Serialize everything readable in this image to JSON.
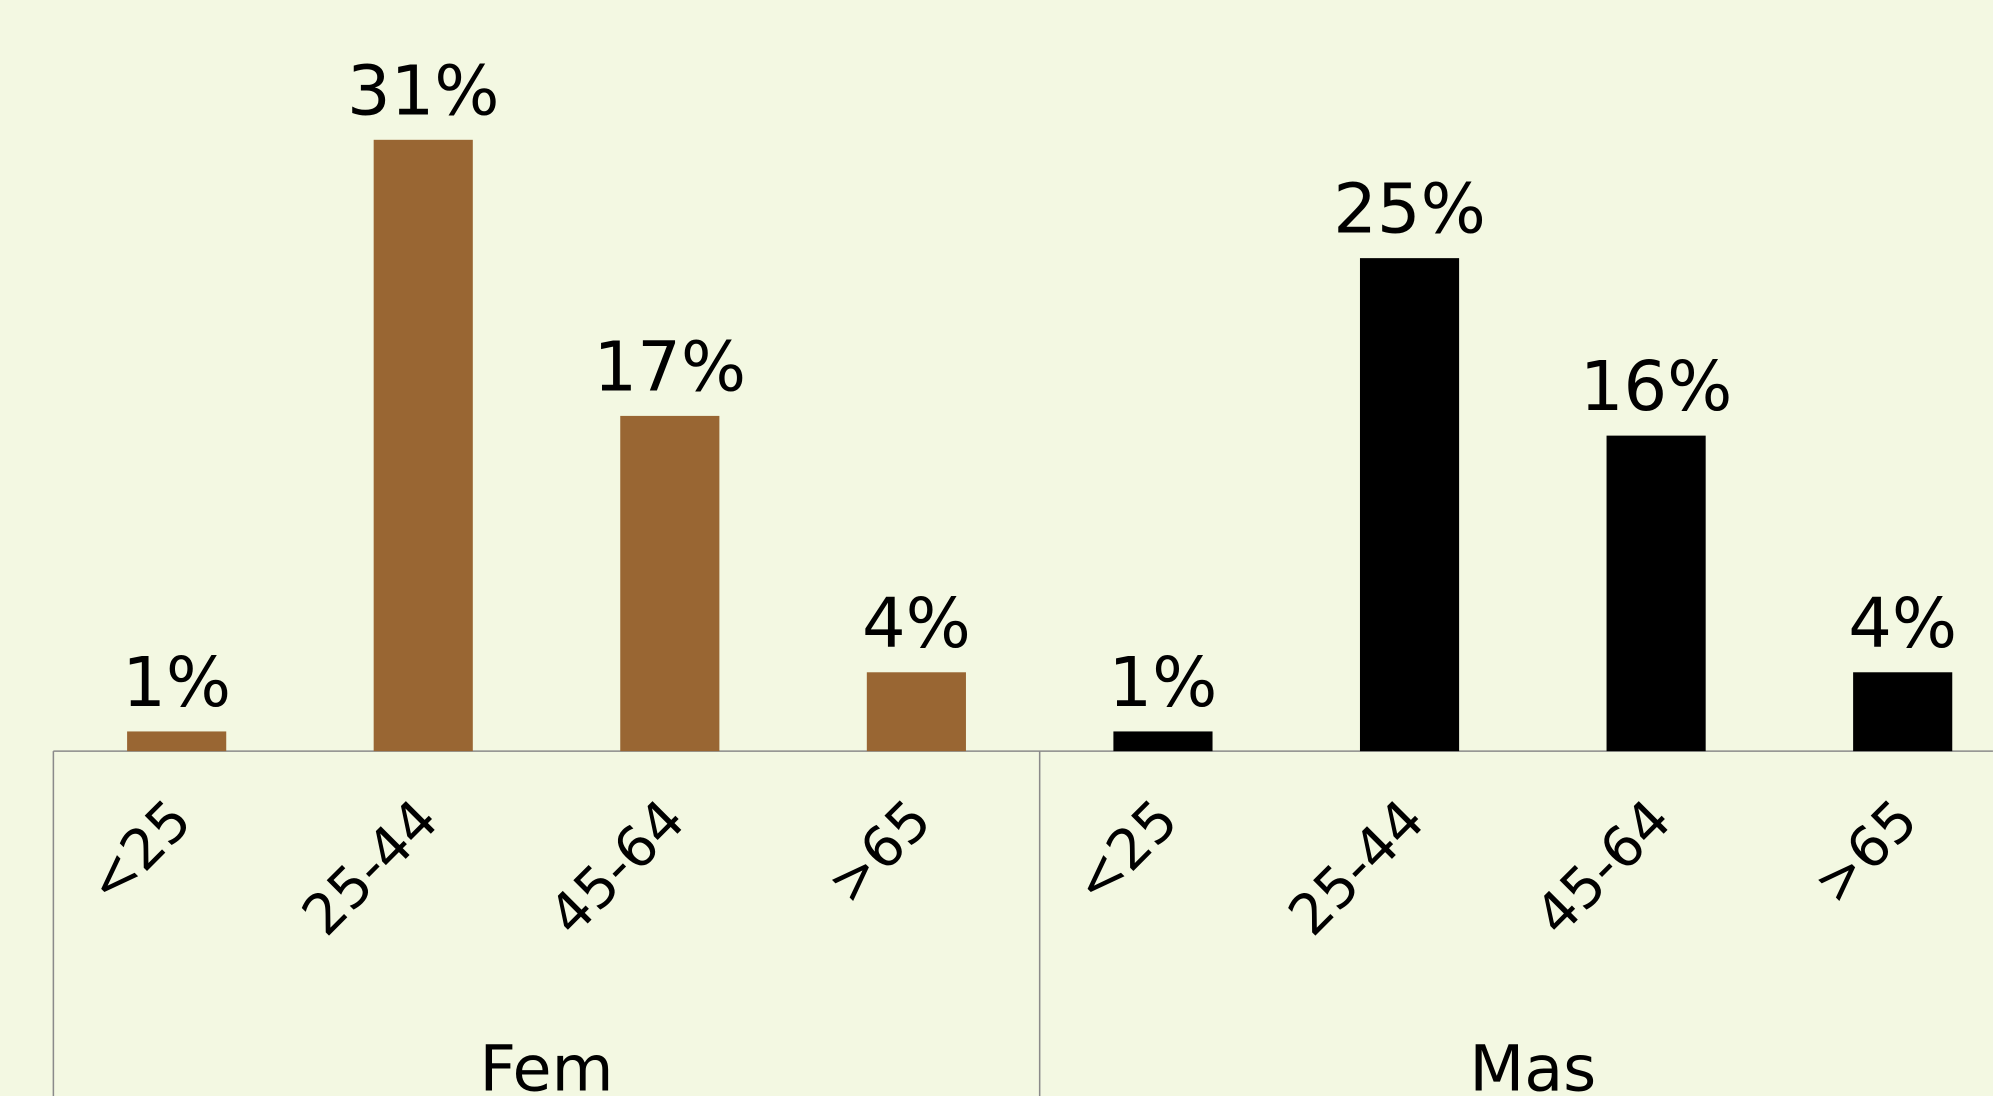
{
  "chart_data": {
    "type": "bar",
    "categories": [
      "<25",
      "25-44",
      "45-64",
      ">65"
    ],
    "series": [
      {
        "name": "Fem",
        "color": "#996633",
        "values": [
          1,
          31,
          17,
          4
        ],
        "value_labels": [
          "1%",
          "31%",
          "17%",
          "4%"
        ]
      },
      {
        "name": "Mas",
        "color": "#000000",
        "values": [
          1,
          25,
          16,
          4
        ],
        "value_labels": [
          "1%",
          "25%",
          "16%",
          "4%"
        ]
      }
    ]
  }
}
